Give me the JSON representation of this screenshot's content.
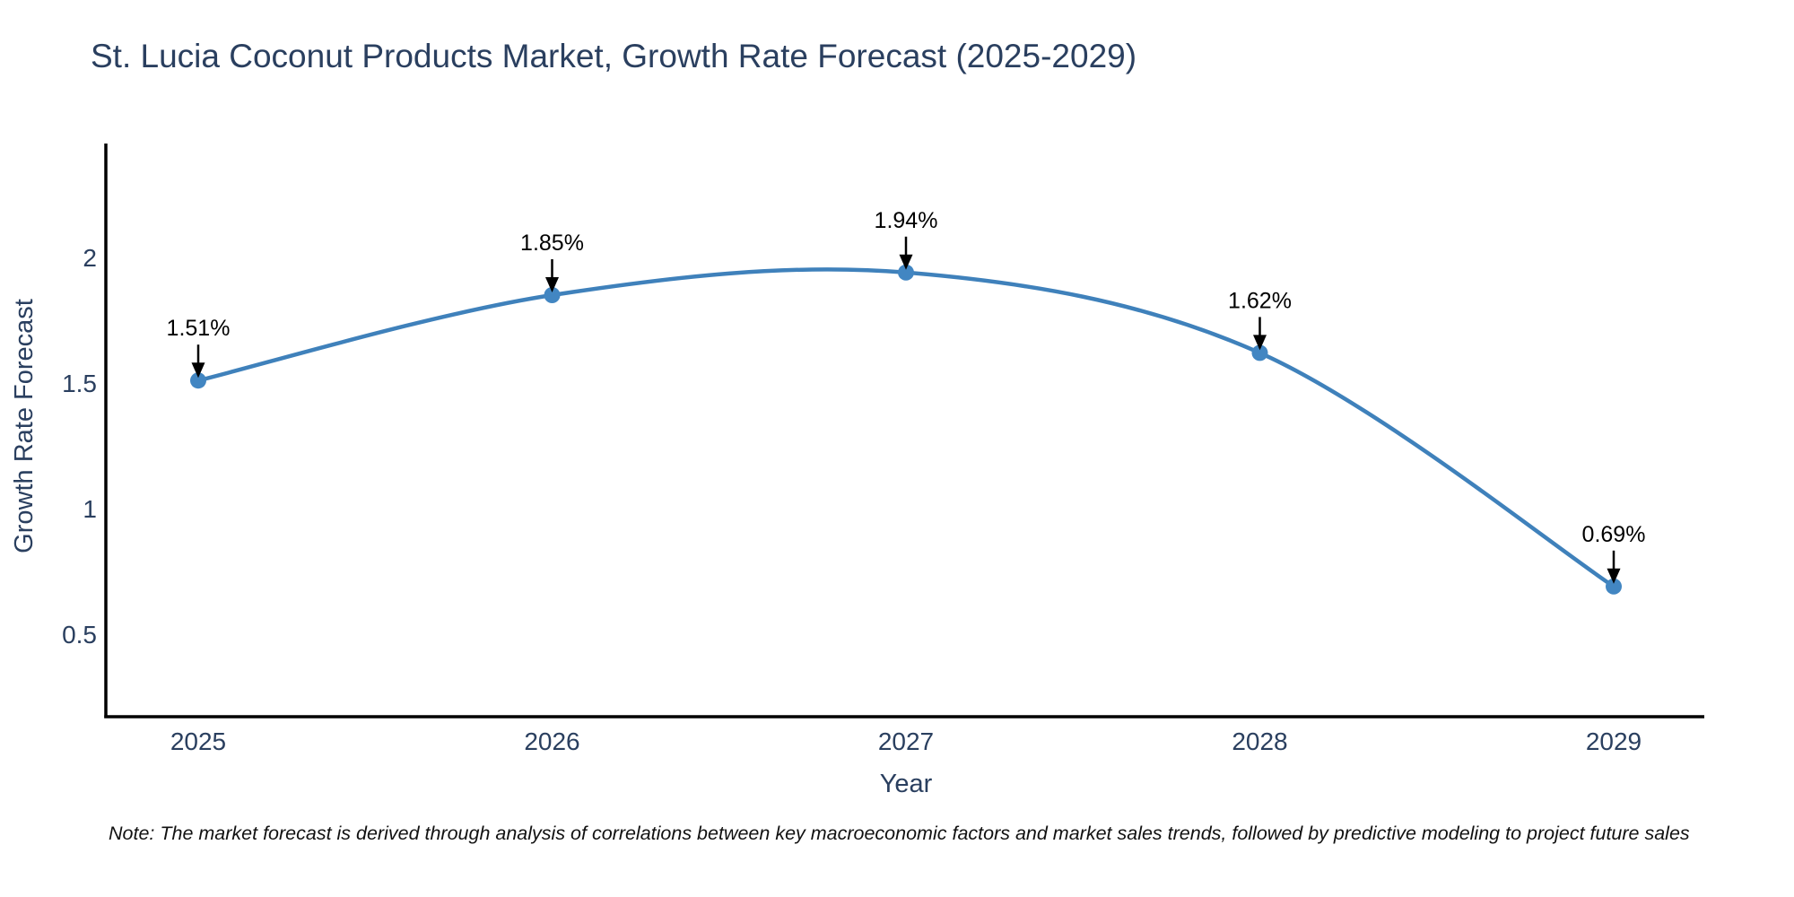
{
  "title": "St. Lucia Coconut Products Market, Growth Rate Forecast (2025-2029)",
  "note": {
    "text": "Note: The market forecast is derived through analysis of correlations between key macroeconomic factors and market sales trends, followed by predictive modeling to project future sales"
  },
  "chart_data": {
    "type": "line",
    "title": "St. Lucia Coconut Products Market, Growth Rate Forecast (2025-2029)",
    "xlabel": "Year",
    "ylabel": "Growth Rate Forecast",
    "x": [
      2025,
      2026,
      2027,
      2028,
      2029
    ],
    "x_tick_labels": [
      "2025",
      "2026",
      "2027",
      "2028",
      "2029"
    ],
    "series": [
      {
        "name": "Growth Rate Forecast",
        "values": [
          1.51,
          1.85,
          1.94,
          1.62,
          0.69
        ]
      }
    ],
    "point_labels": [
      "1.51%",
      "1.85%",
      "1.94%",
      "1.62%",
      "0.69%"
    ],
    "y_ticks": [
      0.5,
      1,
      1.5,
      2
    ],
    "y_tick_labels": [
      "0.5",
      "1",
      "1.5",
      "2"
    ],
    "ylim": [
      0.17,
      2.49
    ],
    "line_shape": "spline",
    "grid": false,
    "legend_position": "none",
    "colors": {
      "line": "#3f81bb",
      "marker": "#4286c2",
      "axis_line": "#000000",
      "axis_text": "#2a3f5f",
      "annotation": "#000000",
      "background": "#ffffff"
    }
  }
}
